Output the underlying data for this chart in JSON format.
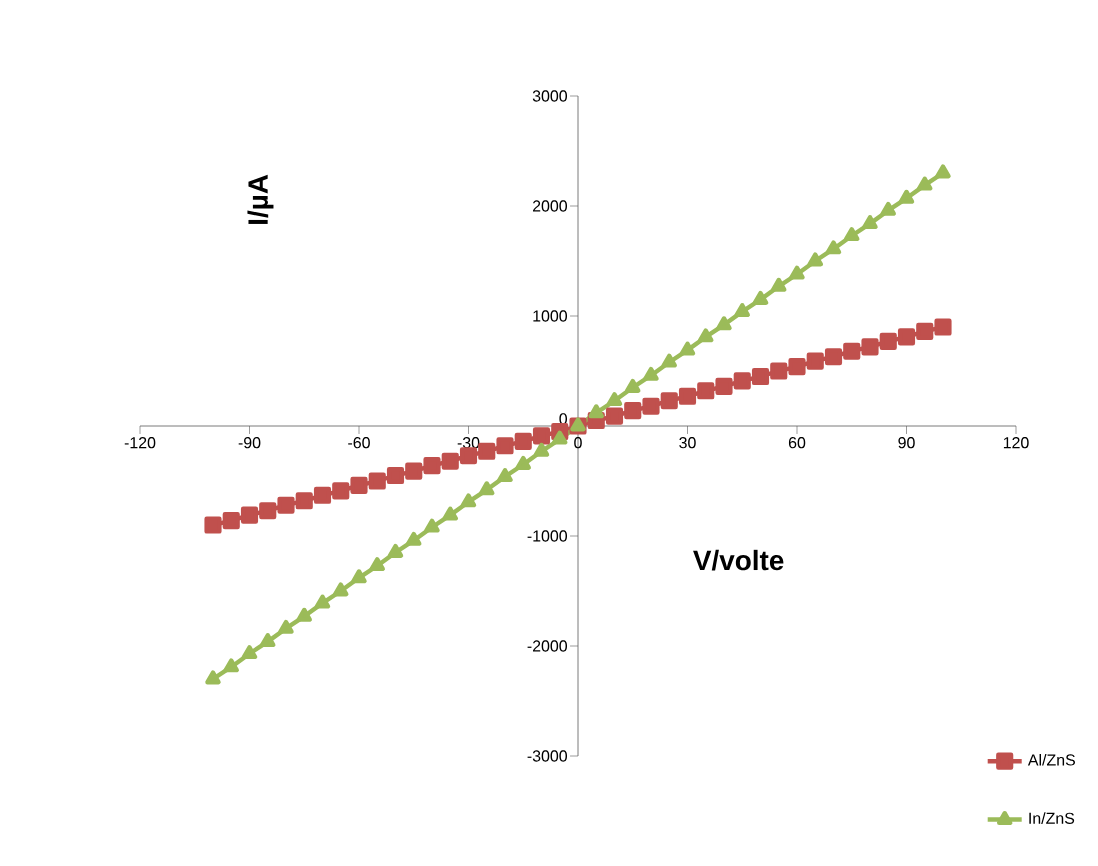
{
  "chart_data": {
    "type": "line",
    "xlabel": "V/volte",
    "ylabel": "I/µA",
    "xlim": [
      -120,
      120
    ],
    "xticks": [
      -120,
      -90,
      -60,
      -30,
      0,
      30,
      60,
      90,
      120
    ],
    "ylim": [
      -3000,
      3000
    ],
    "yticks": [
      -3000,
      -2000,
      -1000,
      0,
      1000,
      2000,
      3000
    ],
    "legend": "bottom right",
    "grid": false,
    "x": [
      -100,
      -95,
      -90,
      -85,
      -80,
      -75,
      -70,
      -65,
      -60,
      -55,
      -50,
      -45,
      -40,
      -35,
      -30,
      -25,
      -20,
      -15,
      -10,
      -5,
      0,
      5,
      10,
      15,
      20,
      25,
      30,
      35,
      40,
      45,
      50,
      55,
      60,
      65,
      70,
      75,
      80,
      85,
      90,
      95,
      100
    ],
    "series": [
      {
        "name": "Al/ZnS",
        "color": "#c0504d",
        "marker": "square",
        "values": [
          -900,
          -860,
          -810,
          -770,
          -720,
          -680,
          -630,
          -590,
          -540,
          -500,
          -450,
          -410,
          -360,
          -320,
          -270,
          -230,
          -180,
          -140,
          -90,
          -50,
          0,
          50,
          90,
          140,
          180,
          230,
          270,
          320,
          360,
          410,
          450,
          500,
          540,
          590,
          630,
          680,
          720,
          770,
          810,
          860,
          900
        ]
      },
      {
        "name": "In/ZnS",
        "color": "#9bbb59",
        "marker": "triangle",
        "values": [
          -2300,
          -2190,
          -2070,
          -1960,
          -1840,
          -1730,
          -1610,
          -1500,
          -1380,
          -1270,
          -1150,
          -1040,
          -920,
          -810,
          -690,
          -580,
          -460,
          -350,
          -230,
          -120,
          0,
          120,
          230,
          350,
          460,
          580,
          690,
          810,
          920,
          1040,
          1150,
          1270,
          1380,
          1500,
          1610,
          1730,
          1840,
          1960,
          2070,
          2190,
          2300
        ]
      }
    ]
  }
}
